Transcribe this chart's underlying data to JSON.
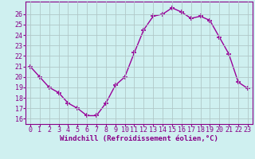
{
  "x": [
    0,
    1,
    2,
    3,
    4,
    5,
    6,
    7,
    8,
    9,
    10,
    11,
    12,
    13,
    14,
    15,
    16,
    17,
    18,
    19,
    20,
    21,
    22,
    23
  ],
  "y": [
    21,
    20,
    19,
    18.5,
    17.5,
    17,
    16.3,
    16.3,
    17.5,
    19.2,
    20,
    22.3,
    24.5,
    25.8,
    26.0,
    26.6,
    26.2,
    25.6,
    25.8,
    25.4,
    23.8,
    22.2,
    19.5,
    18.9
  ],
  "line_color": "#990099",
  "marker": "+",
  "marker_size": 4,
  "bg_color": "#cff0f0",
  "grid_color": "#b0c8c8",
  "xlabel": "Windchill (Refroidissement éolien,°C)",
  "xlabel_color": "#880088",
  "tick_color": "#880088",
  "ylim": [
    15.5,
    27.2
  ],
  "yticks": [
    16,
    17,
    18,
    19,
    20,
    21,
    22,
    23,
    24,
    25,
    26
  ],
  "xlim": [
    -0.5,
    23.5
  ],
  "xticks": [
    0,
    1,
    2,
    3,
    4,
    5,
    6,
    7,
    8,
    9,
    10,
    11,
    12,
    13,
    14,
    15,
    16,
    17,
    18,
    19,
    20,
    21,
    22,
    23
  ],
  "line_width": 1.0,
  "xlabel_fontsize": 6.5,
  "tick_fontsize": 6.0
}
